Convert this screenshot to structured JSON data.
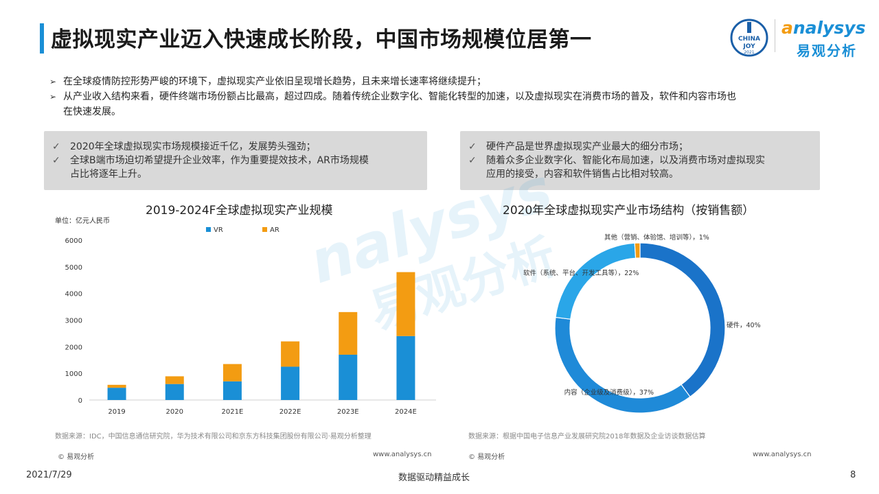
{
  "header": {
    "title": "虚拟现实产业迈入快速成长阶段，中国市场规模位居第一",
    "logo_seal_text": "CHINA JOY 2021",
    "logo_brand": "nalysys",
    "logo_brand_initial": "a",
    "logo_cn": "易观分析"
  },
  "intro": [
    "在全球疫情防控形势严峻的环境下，虚拟现实产业依旧呈现增长趋势，且未来增长速率将继续提升；",
    "从产业收入结构来看，硬件终端市场份额占比最高，超过四成。随着传统企业数字化、智能化转型的加速，以及虚拟现实在消费市场的普及，软件和内容市场也",
    "在快速发展。"
  ],
  "box_left": [
    "2020年全球虚拟现实市场规模接近千亿，发展势头强劲；",
    "全球B端市场迫切希望提升企业效率，作为重要提效技术，AR市场规模",
    "占比将逐年上升。"
  ],
  "box_right": [
    "硬件产品是世界虚拟现实产业最大的细分市场；",
    "随着众多企业数字化、智能化布局加速，以及消费市场对虚拟现实",
    "应用的接受，内容和软件销售占比相对较高。"
  ],
  "chart_data": [
    {
      "type": "bar",
      "stacked": true,
      "title": "2019-2024F全球虚拟现实产业规模",
      "unit_label": "单位：亿元人民币",
      "categories": [
        "2019",
        "2020",
        "2021E",
        "2022E",
        "2023E",
        "2024E"
      ],
      "series": [
        {
          "name": "VR",
          "color": "#1a8fd6",
          "values": [
            460,
            600,
            700,
            1250,
            1700,
            2400
          ]
        },
        {
          "name": "AR",
          "color": "#f39c12",
          "values": [
            110,
            290,
            650,
            950,
            1600,
            2400
          ]
        }
      ],
      "ylim": [
        0,
        6000
      ],
      "yticks": [
        0,
        1000,
        2000,
        3000,
        4000,
        5000,
        6000
      ],
      "legend_position": "top",
      "grid": false,
      "source": "数据来源：IDC，中国信息通信研究院，华为技术有限公司和京东方科技集团股份有限公司·易观分析整理"
    },
    {
      "type": "pie",
      "donut": true,
      "title": "2020年全球虚拟现实产业市场结构（按销售额）",
      "slices": [
        {
          "label": "硬件，40%",
          "value": 40,
          "color": "#1a73c9"
        },
        {
          "label": "内容（企业级及消费级），37%",
          "value": 37,
          "color": "#1f8ad8"
        },
        {
          "label": "软件（系统、平台、开发工具等），22%",
          "value": 22,
          "color": "#2aa6e8"
        },
        {
          "label": "其他（营销、体验馆、培训等），1%",
          "value": 1,
          "color": "#f39c12"
        }
      ],
      "source": "数据来源：根据中国电子信息产业发展研究院2018年数据及企业访谈数据估算"
    }
  ],
  "footer": {
    "copyright_left": "© 易观分析",
    "url_left": "www.analysys.cn",
    "copyright_right": "© 易观分析",
    "url_right": "www.analysys.cn",
    "date": "2021/7/29",
    "slogan": "数据驱动精益成长",
    "page_number": "8"
  },
  "watermark": {
    "brand": "nalysys",
    "cn": "易观分析"
  }
}
